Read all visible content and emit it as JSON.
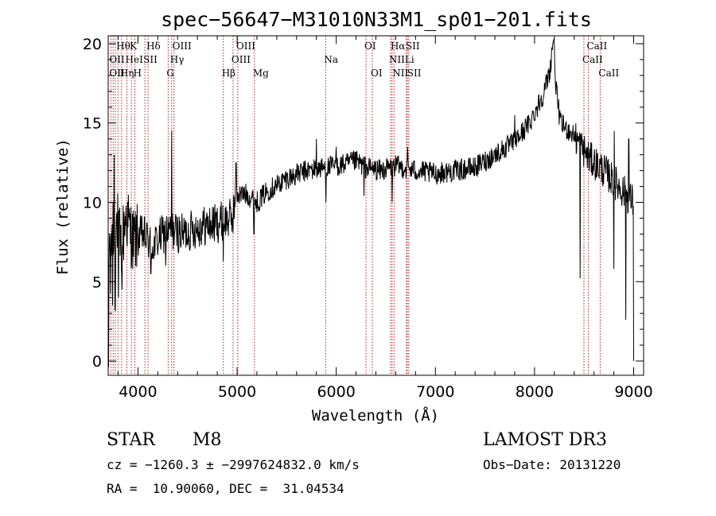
{
  "chart_data": {
    "type": "line",
    "title": "spec−56647−M31010N33M1_sp01−201.fits",
    "xlabel": "Wavelength (Å)",
    "ylabel": "Flux (relative)",
    "xlim": [
      3700,
      9100
    ],
    "ylim": [
      -0.9,
      20.5
    ],
    "xticks": [
      4000,
      5000,
      6000,
      7000,
      8000,
      9000
    ],
    "yticks": [
      0,
      5,
      10,
      15,
      20
    ],
    "grid": false,
    "spectrum_anchors": [
      [
        3700,
        0.5
      ],
      [
        3712,
        8.5
      ],
      [
        3725,
        5.0
      ],
      [
        3740,
        9.5
      ],
      [
        3760,
        7.5
      ],
      [
        3790,
        8.8
      ],
      [
        3830,
        7.0
      ],
      [
        3880,
        9.2
      ],
      [
        3950,
        7.6
      ],
      [
        4050,
        8.0
      ],
      [
        4150,
        7.2
      ],
      [
        4250,
        8.0
      ],
      [
        4350,
        8.2
      ],
      [
        4450,
        8.0
      ],
      [
        4550,
        8.3
      ],
      [
        4650,
        8.5
      ],
      [
        4750,
        8.6
      ],
      [
        4850,
        8.8
      ],
      [
        4950,
        9.0
      ],
      [
        5000,
        10.5
      ],
      [
        5100,
        10.5
      ],
      [
        5200,
        10.0
      ],
      [
        5300,
        10.7
      ],
      [
        5500,
        11.5
      ],
      [
        5700,
        12.0
      ],
      [
        5900,
        12.2
      ],
      [
        6100,
        12.4
      ],
      [
        6200,
        12.6
      ],
      [
        6300,
        12.2
      ],
      [
        6450,
        12.0
      ],
      [
        6600,
        12.3
      ],
      [
        6800,
        12.0
      ],
      [
        7000,
        11.8
      ],
      [
        7200,
        12.0
      ],
      [
        7400,
        12.2
      ],
      [
        7600,
        13.0
      ],
      [
        7800,
        13.8
      ],
      [
        7950,
        15.0
      ],
      [
        8100,
        17.0
      ],
      [
        8160,
        18.5
      ],
      [
        8190,
        20.5
      ],
      [
        8220,
        17.0
      ],
      [
        8260,
        15.0
      ],
      [
        8400,
        14.2
      ],
      [
        8550,
        12.8
      ],
      [
        8700,
        12.0
      ],
      [
        8850,
        11.0
      ],
      [
        9000,
        10.0
      ]
    ],
    "absorption_spikes": [
      [
        3705,
        -0.4
      ],
      [
        3745,
        3.5
      ],
      [
        3770,
        3.2
      ],
      [
        3805,
        4.0
      ],
      [
        3840,
        4.5
      ],
      [
        4130,
        5.5
      ],
      [
        4280,
        6.0
      ],
      [
        4860,
        6.3
      ],
      [
        5170,
        8.0
      ],
      [
        5895,
        10.0
      ],
      [
        6280,
        10.4
      ],
      [
        6565,
        10.0
      ],
      [
        8460,
        5.2
      ],
      [
        8800,
        5.8
      ],
      [
        8920,
        2.6
      ],
      [
        9000,
        0.0
      ]
    ],
    "emission_spikes": [
      [
        3760,
        13.0
      ],
      [
        4340,
        14.5
      ],
      [
        4990,
        12.5
      ],
      [
        5800,
        14.0
      ],
      [
        6000,
        13.5
      ],
      [
        6720,
        13.5
      ],
      [
        7800,
        15.5
      ],
      [
        8805,
        14.5
      ],
      [
        8950,
        14.0
      ]
    ],
    "lines": [
      {
        "label": "Hθ",
        "x": 3798,
        "row": 1
      },
      {
        "label": "K",
        "x": 3934,
        "row": 1
      },
      {
        "label": "Hδ",
        "x": 4102,
        "row": 1
      },
      {
        "label": "OIII",
        "x": 4363,
        "row": 1
      },
      {
        "label": "OII",
        "x": 3727,
        "row": 2
      },
      {
        "label": "HeI",
        "x": 3889,
        "row": 2
      },
      {
        "label": "SII",
        "x": 4070,
        "row": 2
      },
      {
        "label": "Hγ",
        "x": 4340,
        "row": 2
      },
      {
        "label": "OII",
        "x": 3727,
        "row": 3
      },
      {
        "label": "Hη",
        "x": 3835,
        "row": 3
      },
      {
        "label": "H",
        "x": 3969,
        "row": 3
      },
      {
        "label": "G",
        "x": 4305,
        "row": 3
      },
      {
        "label": "OIII",
        "x": 5007,
        "row": 1
      },
      {
        "label": "OIII",
        "x": 4959,
        "row": 2
      },
      {
        "label": "Hβ",
        "x": 4861,
        "row": 3
      },
      {
        "label": "Mg",
        "x": 5175,
        "row": 3
      },
      {
        "label": "Na",
        "x": 5893,
        "row": 2
      },
      {
        "label": "OI",
        "x": 6300,
        "row": 1
      },
      {
        "label": "OI",
        "x": 6364,
        "row": 3
      },
      {
        "label": "Hα",
        "x": 6563,
        "row": 1
      },
      {
        "label": "SII",
        "x": 6716,
        "row": 1
      },
      {
        "label": "NII",
        "x": 6548,
        "row": 2
      },
      {
        "label": "Li",
        "x": 6708,
        "row": 2
      },
      {
        "label": "NII",
        "x": 6583,
        "row": 3
      },
      {
        "label": "SII",
        "x": 6731,
        "row": 3
      },
      {
        "label": "CaII",
        "x": 8542,
        "row": 1
      },
      {
        "label": "CaII",
        "x": 8498,
        "row": 2
      },
      {
        "label": "CaII",
        "x": 8662,
        "row": 3
      }
    ],
    "line_marker_x": [
      3727,
      3750,
      3771,
      3798,
      3835,
      3889,
      3934,
      3969,
      4070,
      4102,
      4305,
      4340,
      4363,
      4861,
      4959,
      5007,
      5175,
      5893,
      6300,
      6364,
      6548,
      6563,
      6583,
      6708,
      6716,
      6731,
      8498,
      8542,
      8662
    ],
    "line_marker_color": "#b22222"
  },
  "info": {
    "object_class": "STAR",
    "subclass": "M8",
    "survey": "LAMOST DR3",
    "cz": "cz = −1260.3 ± −2997624832.0 km/s",
    "obs_date": "Obs−Date: 20131220",
    "radec": "RA =  10.90060, DEC =  31.04534"
  }
}
